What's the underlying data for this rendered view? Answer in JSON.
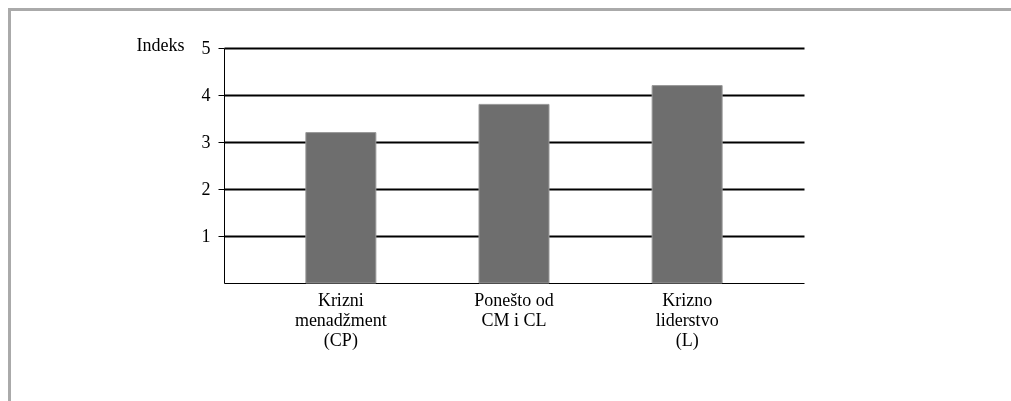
{
  "chart_data": {
    "type": "bar",
    "ylabel": "Indeks",
    "categories": [
      "Krizni\nmenadžment\n(CP)",
      "Ponešto od\nCM i CL",
      "Krizno\nliderstvo\n(L)"
    ],
    "values": [
      3.2,
      3.8,
      4.2
    ],
    "color": "#6e6e6e",
    "ylim": [
      0,
      5
    ],
    "yticks": [
      1,
      2,
      3,
      4,
      5
    ],
    "grid": "y"
  }
}
